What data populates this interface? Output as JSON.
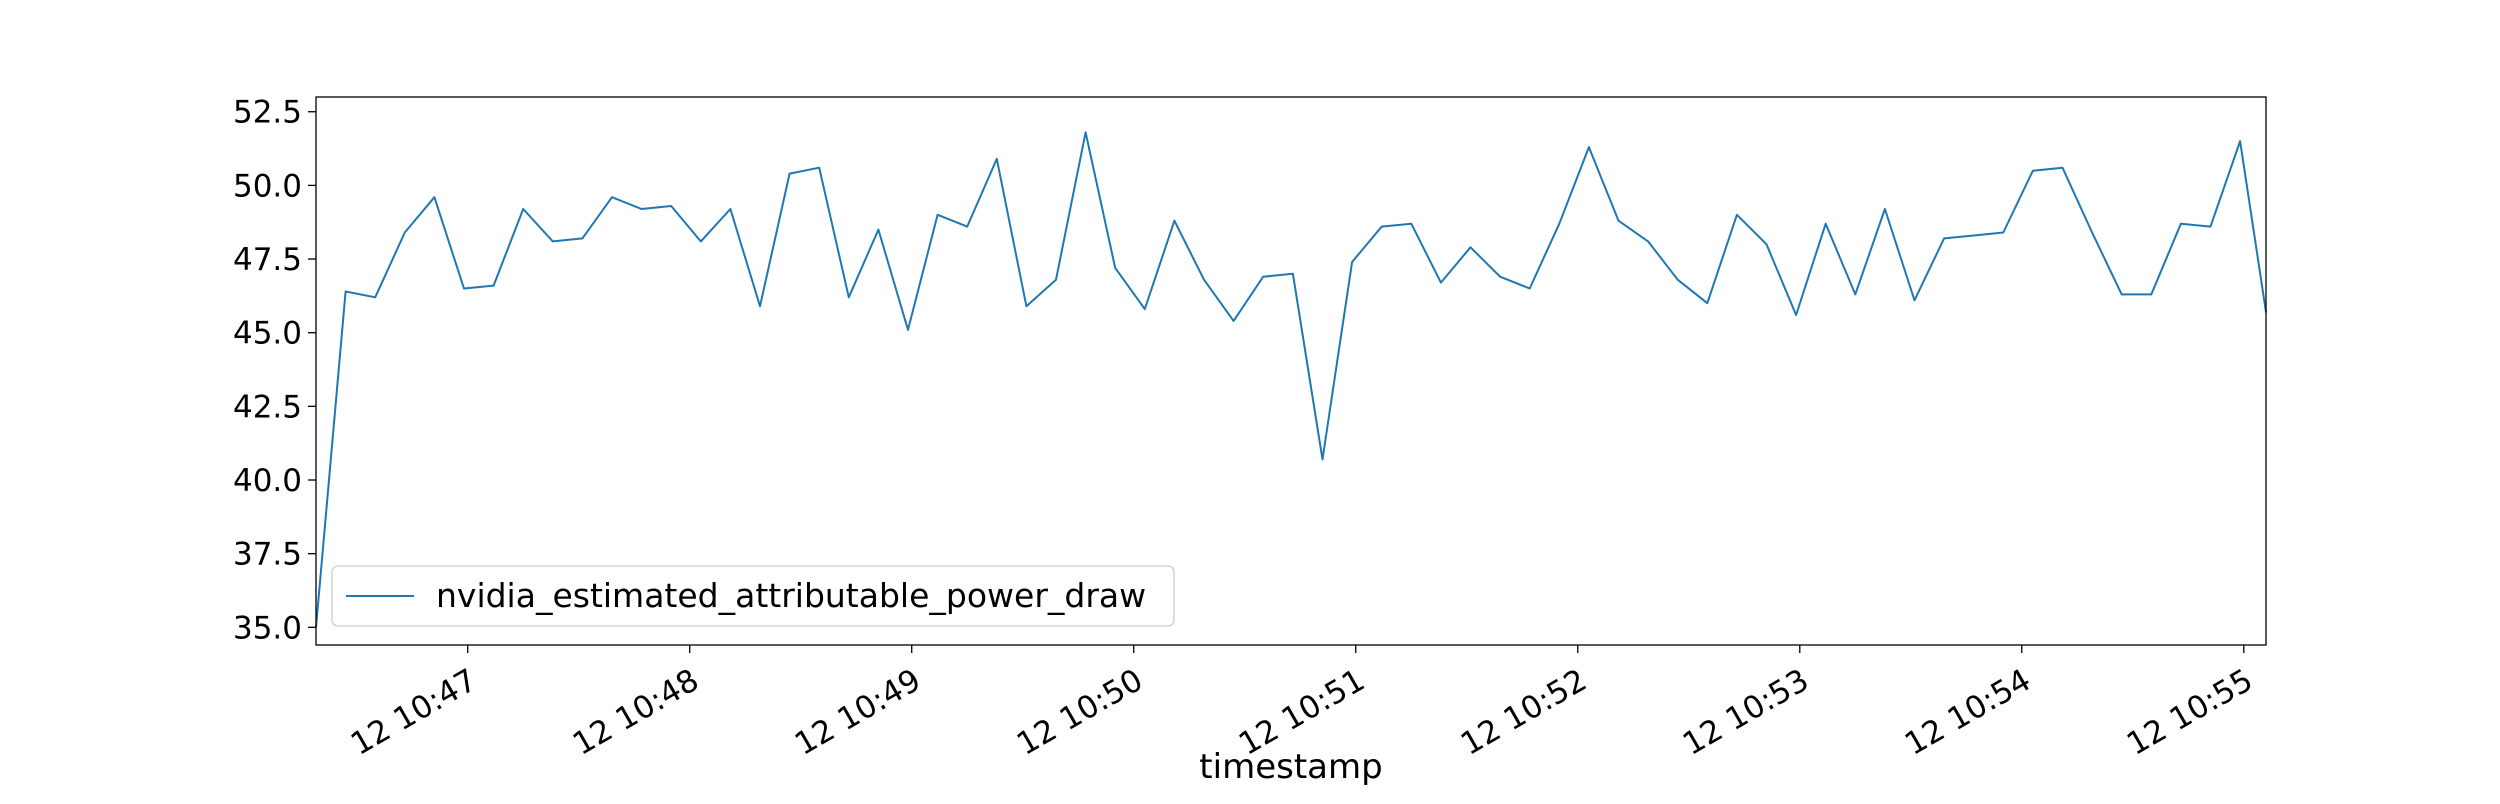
{
  "chart_data": {
    "type": "line",
    "title": "",
    "xlabel": "timestamp",
    "ylabel": "",
    "x_start": "12 10:46:19",
    "x_end": "12 10:55:06",
    "xlim": [
      "12 10:46:19",
      "12 10:55:06"
    ],
    "ylim": [
      34.4,
      53.0
    ],
    "x_tick_labels": [
      "12 10:47",
      "12 10:48",
      "12 10:49",
      "12 10:50",
      "12 10:51",
      "12 10:52",
      "12 10:53",
      "12 10:54",
      "12 10:55"
    ],
    "y_ticks": [
      35.0,
      37.5,
      40.0,
      42.5,
      45.0,
      47.5,
      50.0,
      52.5
    ],
    "y_tick_labels": [
      "35.0",
      "37.5",
      "40.0",
      "42.5",
      "45.0",
      "47.5",
      "50.0",
      "52.5"
    ],
    "grid": false,
    "legend": {
      "position": "lower-left",
      "entries": [
        "nvidia_estimated_attributable_power_draw"
      ]
    },
    "series": [
      {
        "name": "nvidia_estimated_attributable_power_draw",
        "color": "#1f77b4",
        "x": [
          "12 10:46:19",
          "12 10:46:27",
          "12 10:46:35",
          "12 10:46:43",
          "12 10:46:51",
          "12 10:46:59",
          "12 10:47:07",
          "12 10:47:15",
          "12 10:47:23",
          "12 10:47:31",
          "12 10:47:39",
          "12 10:47:47",
          "12 10:47:55",
          "12 10:48:03",
          "12 10:48:11",
          "12 10:48:19",
          "12 10:48:27",
          "12 10:48:35",
          "12 10:48:43",
          "12 10:48:51",
          "12 10:48:59",
          "12 10:49:07",
          "12 10:49:15",
          "12 10:49:23",
          "12 10:49:31",
          "12 10:49:39",
          "12 10:49:47",
          "12 10:49:55",
          "12 10:50:03",
          "12 10:50:11",
          "12 10:50:19",
          "12 10:50:27",
          "12 10:50:35",
          "12 10:50:43",
          "12 10:50:51",
          "12 10:50:59",
          "12 10:51:07",
          "12 10:51:15",
          "12 10:51:23",
          "12 10:51:31",
          "12 10:51:39",
          "12 10:51:47",
          "12 10:51:55",
          "12 10:52:03",
          "12 10:52:11",
          "12 10:52:19",
          "12 10:52:27",
          "12 10:52:35",
          "12 10:52:43",
          "12 10:52:51",
          "12 10:52:59",
          "12 10:53:07",
          "12 10:53:15",
          "12 10:53:23",
          "12 10:53:31",
          "12 10:53:39",
          "12 10:53:47",
          "12 10:53:55",
          "12 10:54:03",
          "12 10:54:11",
          "12 10:54:19",
          "12 10:54:27",
          "12 10:54:35",
          "12 10:54:43",
          "12 10:54:51",
          "12 10:54:59",
          "12 10:55:06"
        ],
        "values": [
          35.0,
          46.4,
          46.2,
          48.4,
          49.6,
          46.5,
          46.6,
          49.2,
          48.1,
          48.2,
          49.6,
          49.2,
          49.3,
          48.1,
          49.2,
          45.9,
          50.4,
          50.6,
          46.2,
          48.5,
          45.1,
          49.0,
          48.6,
          50.9,
          45.9,
          46.8,
          51.8,
          47.2,
          45.8,
          48.8,
          46.8,
          45.4,
          46.9,
          47.0,
          40.7,
          47.4,
          48.6,
          48.7,
          46.7,
          47.9,
          46.9,
          46.5,
          48.7,
          51.3,
          48.8,
          48.1,
          46.8,
          46.0,
          49.0,
          48.0,
          45.6,
          48.7,
          46.3,
          49.2,
          46.1,
          48.2,
          48.3,
          48.4,
          50.5,
          50.6,
          48.4,
          46.3,
          46.3,
          48.7,
          48.6,
          51.5,
          45.7
        ]
      }
    ]
  }
}
